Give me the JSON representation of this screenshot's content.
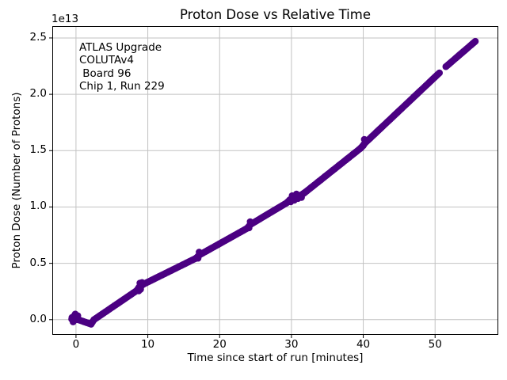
{
  "colors": {
    "marker": "#4B0082",
    "grid": "#c2c2c2",
    "spine": "#000000",
    "text": "#000000",
    "background": "#ffffff"
  },
  "chart_data": {
    "type": "scatter",
    "title": "Proton Dose vs Relative Time",
    "xlabel": "Time since start of run [minutes]",
    "ylabel": "Proton Dose (Number of Protons)",
    "y_scale_offset_label": "1e13",
    "y_values_unit": "1e13 protons",
    "annotation_lines": [
      "ATLAS Upgrade",
      "COLUTAv4",
      " Board 96",
      "Chip 1, Run 229"
    ],
    "xlim": [
      -3.3,
      58.8
    ],
    "ylim": [
      -0.135,
      2.605
    ],
    "xticks": [
      0,
      10,
      20,
      30,
      40,
      50
    ],
    "xtick_labels": [
      "0",
      "10",
      "20",
      "30",
      "40",
      "50"
    ],
    "yticks": [
      0.0,
      0.5,
      1.0,
      1.5,
      2.0,
      2.5
    ],
    "ytick_labels": [
      "0.0",
      "0.5",
      "1.0",
      "1.5",
      "2.0",
      "2.5"
    ],
    "grid": true,
    "legend": false,
    "marker_color": "#4B0082",
    "marker_diameter_px": 8.6,
    "dot_spacing_px": 1.5,
    "series": [
      {
        "name": "proton_dose",
        "segments": [
          [
            [
              -0.6,
              0.005
            ],
            [
              0.3,
              0.0
            ],
            [
              1.0,
              -0.015
            ],
            [
              2.1,
              -0.04
            ],
            [
              2.5,
              0.0
            ],
            [
              8.5,
              0.26
            ],
            [
              8.8,
              0.29
            ],
            [
              9.4,
              0.315
            ],
            [
              16.7,
              0.545
            ],
            [
              17.2,
              0.575
            ],
            [
              23.8,
              0.81
            ],
            [
              24.3,
              0.845
            ],
            [
              29.3,
              1.035
            ],
            [
              29.8,
              1.065
            ],
            [
              30.5,
              1.09
            ],
            [
              31.3,
              1.105
            ],
            [
              31.8,
              1.125
            ],
            [
              39.7,
              1.525
            ],
            [
              40.2,
              1.565
            ],
            [
              50.6,
              2.19
            ]
          ],
          [
            [
              51.5,
              2.245
            ],
            [
              55.6,
              2.47
            ]
          ]
        ],
        "cluster_points": [
          [
            -0.55,
            0.02
          ],
          [
            -0.25,
            0.035
          ],
          [
            0.05,
            0.02
          ],
          [
            -0.4,
            -0.02
          ],
          [
            0.25,
            0.035
          ],
          [
            -0.1,
            0.05
          ],
          [
            8.75,
            0.255
          ],
          [
            9.0,
            0.27
          ],
          [
            9.2,
            0.33
          ],
          [
            8.9,
            0.325
          ],
          [
            17.0,
            0.545
          ],
          [
            17.15,
            0.6
          ],
          [
            24.1,
            0.815
          ],
          [
            24.25,
            0.87
          ],
          [
            29.9,
            1.045
          ],
          [
            30.4,
            1.06
          ],
          [
            30.9,
            1.075
          ],
          [
            31.4,
            1.085
          ],
          [
            30.1,
            1.1
          ],
          [
            30.7,
            1.115
          ],
          [
            40.0,
            1.545
          ],
          [
            40.15,
            1.6
          ]
        ]
      }
    ]
  }
}
